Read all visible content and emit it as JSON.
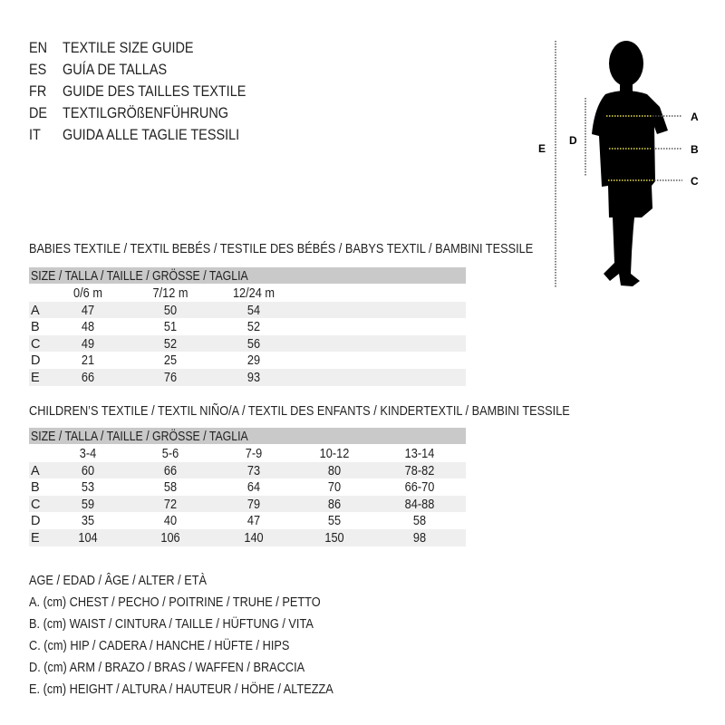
{
  "guide_titles": [
    {
      "code": "EN",
      "title": "TEXTILE SIZE GUIDE"
    },
    {
      "code": "ES",
      "title": "GUÍA DE TALLAS"
    },
    {
      "code": "FR",
      "title": "GUIDE DES TAILLES TEXTILE"
    },
    {
      "code": "DE",
      "title": "TEXTILGRÖßENFÜHRUNG"
    },
    {
      "code": "IT",
      "title": "GUIDA ALLE TAGLIE TESSILI"
    }
  ],
  "diagram": {
    "labels": {
      "a": "A",
      "b": "B",
      "c": "C",
      "d": "D",
      "e": "E"
    },
    "measure_line_color": "#e8e04a"
  },
  "babies": {
    "title": "BABIES TEXTILE / TEXTIL BEBÉS / TESTILE DES BÉBÉS / BABYS TEXTIL / BAMBINI TESSILE",
    "size_header": "SIZE / TALLA / TAILLE / GRÖSSE / TAGLIA",
    "columns": [
      "0/6 m",
      "7/12 m",
      "12/24 m"
    ],
    "rows": [
      {
        "label": "A",
        "values": [
          "47",
          "50",
          "54"
        ]
      },
      {
        "label": "B",
        "values": [
          "48",
          "51",
          "52"
        ]
      },
      {
        "label": "C",
        "values": [
          "49",
          "52",
          "56"
        ]
      },
      {
        "label": "D",
        "values": [
          "21",
          "25",
          "29"
        ]
      },
      {
        "label": "E",
        "values": [
          "66",
          "76",
          "93"
        ]
      }
    ]
  },
  "children": {
    "title": "CHILDREN’S TEXTILE / TEXTIL NIÑO/A / TEXTIL DES ENFANTS / KINDERTEXTIL / BAMBINI TESSILE",
    "size_header": "SIZE / TALLA / TAILLE / GRÖSSE / TAGLIA",
    "columns": [
      "3-4",
      "5-6",
      "7-9",
      "10-12",
      "13-14"
    ],
    "rows": [
      {
        "label": "A",
        "values": [
          "60",
          "66",
          "73",
          "80",
          "78-82"
        ]
      },
      {
        "label": "B",
        "values": [
          "53",
          "58",
          "64",
          "70",
          "66-70"
        ]
      },
      {
        "label": "C",
        "values": [
          "59",
          "72",
          "79",
          "86",
          "84-88"
        ]
      },
      {
        "label": "D",
        "values": [
          "35",
          "40",
          "47",
          "55",
          "58"
        ]
      },
      {
        "label": "E",
        "values": [
          "104",
          "106",
          "140",
          "150",
          "98"
        ]
      }
    ]
  },
  "legend": [
    "AGE / EDAD / ÂGE / ALTER / ETÀ",
    "A. (cm) CHEST / PECHO / POITRINE / TRUHE / PETTO",
    "B. (cm) WAIST / CINTURA / TAILLE / HÜFTUNG / VITA",
    "C. (cm) HIP / CADERA / HANCHE / HÜFTE / HIPS",
    "D. (cm) ARM / BRAZO / BRAS / WAFFEN / BRACCIA",
    "E. (cm) HEIGHT / ALTURA / HAUTEUR / HÖHE / ALTEZZA"
  ]
}
